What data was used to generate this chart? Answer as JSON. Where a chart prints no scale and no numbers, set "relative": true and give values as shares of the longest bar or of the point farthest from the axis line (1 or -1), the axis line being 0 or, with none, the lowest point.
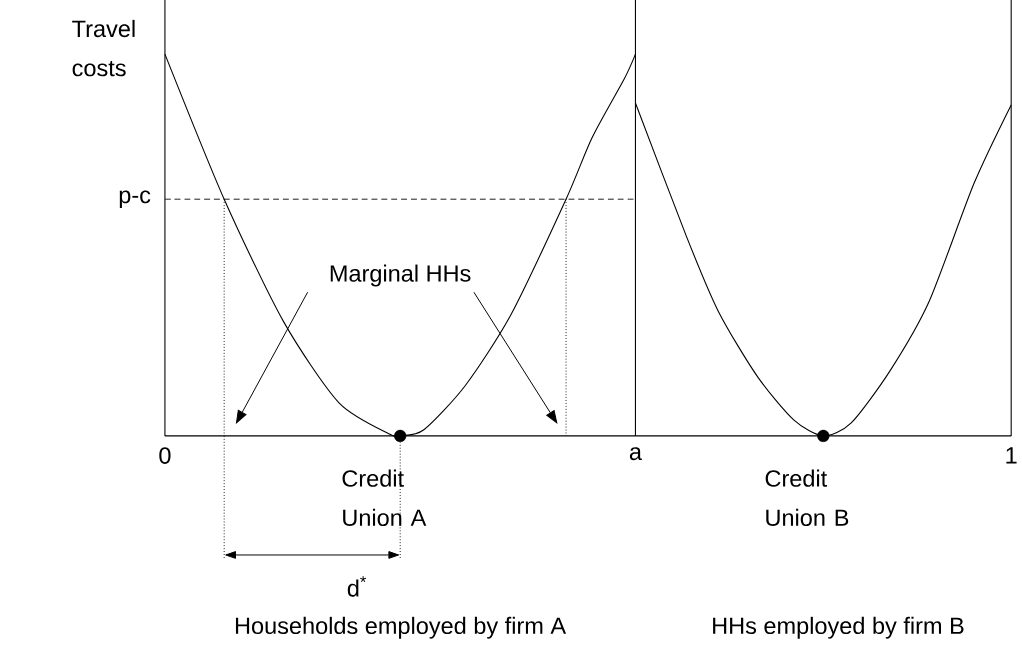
{
  "chart_data": {
    "type": "line",
    "relative": true,
    "ylabel": "Travel costs",
    "xlim": [
      0,
      1
    ],
    "xticks": [
      0,
      {
        "value": 0.556,
        "label": "a"
      },
      1
    ],
    "tick_labels": "x",
    "series": [
      {
        "color": "#000000",
        "x": [
          0,
          0.07,
          0.14,
          0.206,
          0.267,
          0.278,
          0.306,
          0.355,
          0.409,
          0.474,
          0.505,
          0.543,
          0.556
        ],
        "values": [
          1,
          0.62,
          0.3,
          0.086,
          0.003,
          0,
          0.016,
          0.132,
          0.318,
          0.62,
          0.782,
          0.936,
          1
        ]
      },
      {
        "color": "#000000",
        "x": [
          0.556,
          0.616,
          0.654,
          0.7,
          0.743,
          0.778,
          0.811,
          0.857,
          0.903,
          0.956,
          1
        ],
        "values": [
          0.872,
          0.524,
          0.326,
          0.156,
          0.042,
          0,
          0.034,
          0.171,
          0.352,
          0.661,
          0.867
        ]
      },
      {
        "color": "#000000",
        "line_style": "dashed",
        "x": [
          0,
          0.556
        ],
        "values": [
          0.62,
          0.62
        ]
      },
      {
        "color": "#000000",
        "line_style": "dotted",
        "x": [
          0.07,
          0.07
        ],
        "values": [
          0.62,
          0
        ]
      },
      {
        "color": "#000000",
        "line_style": "dotted",
        "x": [
          0.474,
          0.474
        ],
        "values": [
          0.62,
          0
        ]
      },
      {
        "type": "scatter",
        "color": "#000000",
        "x": [
          0.278,
          0.778
        ],
        "values": [
          0,
          0
        ]
      }
    ],
    "ref_lines": [
      {
        "axis": "x",
        "value": 0.556
      },
      {
        "axis": "x",
        "value": 1
      }
    ],
    "annotations": [
      {
        "text": "p-c",
        "x": 0,
        "y": 0.62
      },
      "Marginal  HHs",
      {
        "text": "Credit Union A",
        "x": 0.278,
        "y": 0
      },
      {
        "text": "Credit Union B",
        "x": 0.778,
        "y": 0
      },
      "d$^{*}$",
      "Households employed by firm A",
      "HHs  employed by firm B"
    ]
  }
}
